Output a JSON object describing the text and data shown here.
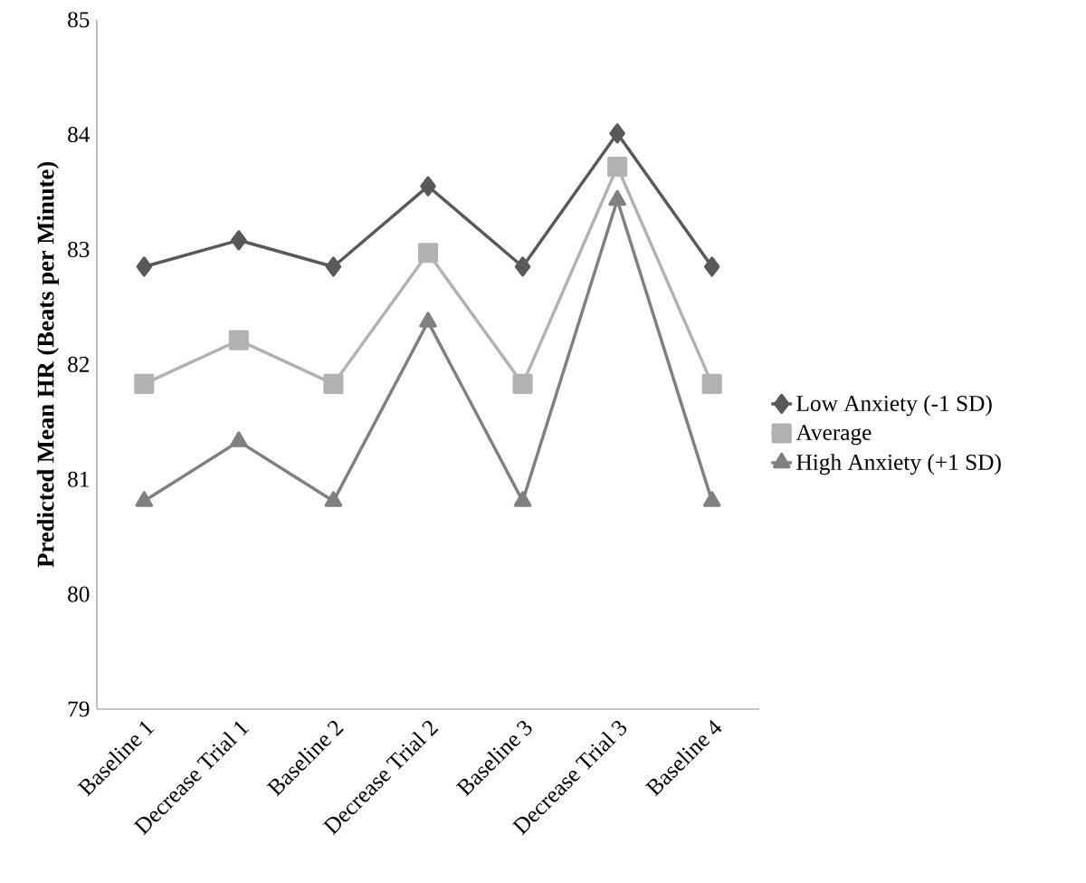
{
  "chart_data": {
    "type": "line",
    "ylabel": "Predicted Mean HR (Beats per Minute)",
    "categories": [
      "Baseline 1",
      "Decrease Trial 1",
      "Baseline 2",
      "Decrease Trial 2",
      "Baseline 3",
      "Decrease Trial 3",
      "Baseline 4"
    ],
    "series": [
      {
        "name": "Low Anxiety (-1 SD)",
        "color": "#595959",
        "marker": "diamond",
        "values": [
          82.85,
          83.08,
          82.85,
          83.55,
          82.85,
          84.01,
          82.85
        ]
      },
      {
        "name": "Average",
        "color": "#b2b2b2",
        "marker": "square",
        "values": [
          81.83,
          82.21,
          81.83,
          82.97,
          81.83,
          83.72,
          81.83
        ]
      },
      {
        "name": "High Anxiety (+1 SD)",
        "color": "#808080",
        "marker": "triangle",
        "values": [
          80.81,
          81.33,
          80.81,
          82.37,
          80.81,
          83.43,
          80.81
        ]
      }
    ],
    "ylim": [
      79,
      85
    ],
    "yticks": [
      79,
      80,
      81,
      82,
      83,
      84,
      85
    ],
    "grid": false,
    "legend": "right",
    "line_style": "solid"
  }
}
